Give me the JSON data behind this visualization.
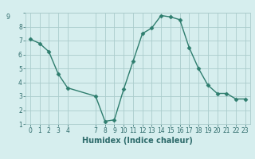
{
  "x": [
    0,
    1,
    2,
    3,
    4,
    7,
    8,
    9,
    10,
    11,
    12,
    13,
    14,
    15,
    16,
    17,
    18,
    19,
    20,
    21,
    22,
    23
  ],
  "y": [
    7.1,
    6.8,
    6.2,
    4.6,
    3.6,
    3.0,
    1.2,
    1.3,
    3.5,
    5.5,
    7.5,
    7.9,
    8.8,
    8.7,
    8.5,
    6.5,
    5.0,
    3.8,
    3.2,
    3.2,
    2.8,
    2.8
  ],
  "line_color": "#2e7d6e",
  "marker_color": "#2e7d6e",
  "bg_color": "#d6eeee",
  "grid_color": "#aacccc",
  "xlabel": "Humidex (Indice chaleur)",
  "ylim": [
    1,
    9
  ],
  "xlim": [
    -0.5,
    23.5
  ],
  "xticks": [
    0,
    1,
    2,
    3,
    4,
    7,
    8,
    9,
    10,
    11,
    12,
    13,
    14,
    15,
    16,
    17,
    18,
    19,
    20,
    21,
    22,
    23
  ],
  "yticks": [
    1,
    2,
    3,
    4,
    5,
    6,
    7,
    8,
    9
  ],
  "font_color": "#2e6b6b",
  "tick_fontsize": 5.5,
  "xlabel_fontsize": 7.0
}
